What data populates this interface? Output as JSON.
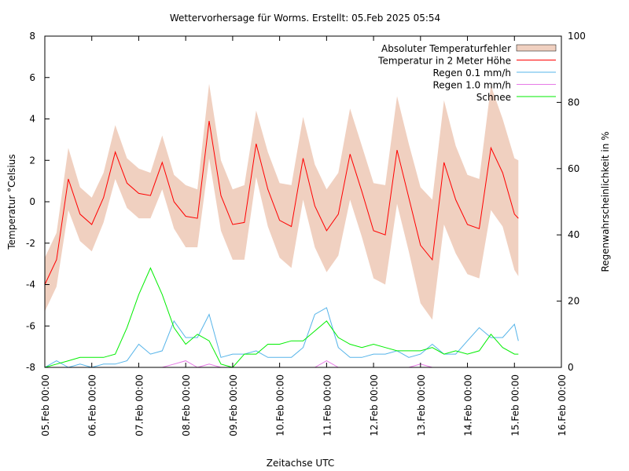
{
  "chart_data": {
    "type": "line",
    "title": "Wettervorhersage für Worms. Erstellt: 05.Feb 2025 05:54",
    "xlabel": "Zeitachse UTC",
    "ylabel": "Temperatur °Celsius",
    "y2label": "Regenwahrscheinlichkeit in %",
    "xlim": [
      "2025-02-05T00:00",
      "2025-02-16T00:00"
    ],
    "ylim": [
      -8,
      8
    ],
    "y2lim": [
      0,
      100
    ],
    "x_tick_labels": [
      "05.Feb 00:00",
      "06.Feb 00:00",
      "07.Feb 00:00",
      "08.Feb 00:00",
      "09.Feb 00:00",
      "10.Feb 00:00",
      "11.Feb 00:00",
      "12.Feb 00:00",
      "13.Feb 00:00",
      "14.Feb 00:00",
      "15.Feb 00:00",
      "16.Feb 00:00"
    ],
    "y_tick_labels": [
      "-8",
      "-6",
      "-4",
      "-2",
      "0",
      "2",
      "4",
      "6",
      "8"
    ],
    "y2_tick_labels": [
      "0",
      "20",
      "40",
      "60",
      "80",
      "100"
    ],
    "grid": false,
    "legend_position": "top-right",
    "x": [
      "2025-02-05T00:00",
      "2025-02-05T06:00",
      "2025-02-05T12:00",
      "2025-02-05T18:00",
      "2025-02-06T00:00",
      "2025-02-06T06:00",
      "2025-02-06T12:00",
      "2025-02-06T18:00",
      "2025-02-07T00:00",
      "2025-02-07T06:00",
      "2025-02-07T12:00",
      "2025-02-07T18:00",
      "2025-02-08T00:00",
      "2025-02-08T06:00",
      "2025-02-08T12:00",
      "2025-02-08T18:00",
      "2025-02-09T00:00",
      "2025-02-09T06:00",
      "2025-02-09T12:00",
      "2025-02-09T18:00",
      "2025-02-10T00:00",
      "2025-02-10T06:00",
      "2025-02-10T12:00",
      "2025-02-10T18:00",
      "2025-02-11T00:00",
      "2025-02-11T06:00",
      "2025-02-11T12:00",
      "2025-02-11T18:00",
      "2025-02-12T00:00",
      "2025-02-12T06:00",
      "2025-02-12T12:00",
      "2025-02-12T18:00",
      "2025-02-13T00:00",
      "2025-02-13T06:00",
      "2025-02-13T12:00",
      "2025-02-13T18:00",
      "2025-02-14T00:00",
      "2025-02-14T06:00",
      "2025-02-14T12:00",
      "2025-02-14T18:00",
      "2025-02-15T00:00",
      "2025-02-15T02:00"
    ],
    "series": [
      {
        "name": "Absoluter Temperaturfehler",
        "kind": "band",
        "axis": "y",
        "color": "#f0d0c0",
        "values": [
          1.3,
          1.3,
          1.5,
          1.3,
          1.3,
          1.2,
          1.3,
          1.2,
          1.2,
          1.1,
          1.3,
          1.3,
          1.5,
          1.4,
          1.8,
          1.7,
          1.7,
          1.8,
          1.6,
          1.8,
          1.8,
          2.0,
          2.0,
          2.0,
          2.0,
          2.0,
          2.2,
          2.2,
          2.3,
          2.4,
          2.6,
          2.6,
          2.8,
          2.9,
          3.0,
          2.6,
          2.4,
          2.4,
          3.0,
          2.6,
          2.7,
          2.8
        ]
      },
      {
        "name": "Temperatur in 2 Meter Höhe",
        "axis": "y",
        "color": "#ff0000",
        "values": [
          -4.0,
          -2.8,
          1.1,
          -0.6,
          -1.1,
          0.2,
          2.4,
          0.9,
          0.4,
          0.3,
          1.9,
          0.0,
          -0.7,
          -0.8,
          3.9,
          0.3,
          -1.1,
          -1.0,
          2.8,
          0.6,
          -0.9,
          -1.2,
          2.1,
          -0.2,
          -1.4,
          -0.6,
          2.3,
          0.5,
          -1.4,
          -1.6,
          2.5,
          0.2,
          -2.1,
          -2.8,
          1.9,
          0.1,
          -1.1,
          -1.3,
          2.6,
          1.4,
          -0.6,
          -0.8
        ]
      },
      {
        "name": "Regen 0.1 mm/h",
        "axis": "y2",
        "color": "#56b4e9",
        "values": [
          0,
          2,
          0,
          1,
          0,
          1,
          1,
          2,
          7,
          4,
          5,
          14,
          9,
          9,
          16,
          3,
          4,
          4,
          5,
          3,
          3,
          3,
          6,
          16,
          18,
          6,
          3,
          3,
          4,
          4,
          5,
          3,
          4,
          7,
          4,
          4,
          8,
          12,
          9,
          9,
          13,
          8
        ]
      },
      {
        "name": "Regen 1.0 mm/h",
        "axis": "y2",
        "color": "#e67ae6",
        "values": [
          0,
          0,
          0,
          0,
          0,
          0,
          0,
          0,
          0,
          0,
          0,
          1,
          2,
          0,
          1,
          0,
          0,
          0,
          0,
          0,
          0,
          0,
          0,
          0,
          2,
          0,
          0,
          0,
          0,
          0,
          0,
          0,
          1,
          0,
          0,
          0,
          0,
          0,
          0,
          0,
          0,
          0
        ]
      },
      {
        "name": "Schnee",
        "axis": "y2",
        "color": "#00ee00",
        "values": [
          0,
          1,
          2,
          3,
          3,
          3,
          4,
          12,
          22,
          30,
          22,
          12,
          7,
          10,
          8,
          1,
          0,
          4,
          4,
          7,
          7,
          8,
          8,
          11,
          14,
          9,
          7,
          6,
          7,
          6,
          5,
          5,
          5,
          6,
          4,
          5,
          4,
          5,
          10,
          6,
          4,
          4
        ]
      }
    ]
  }
}
